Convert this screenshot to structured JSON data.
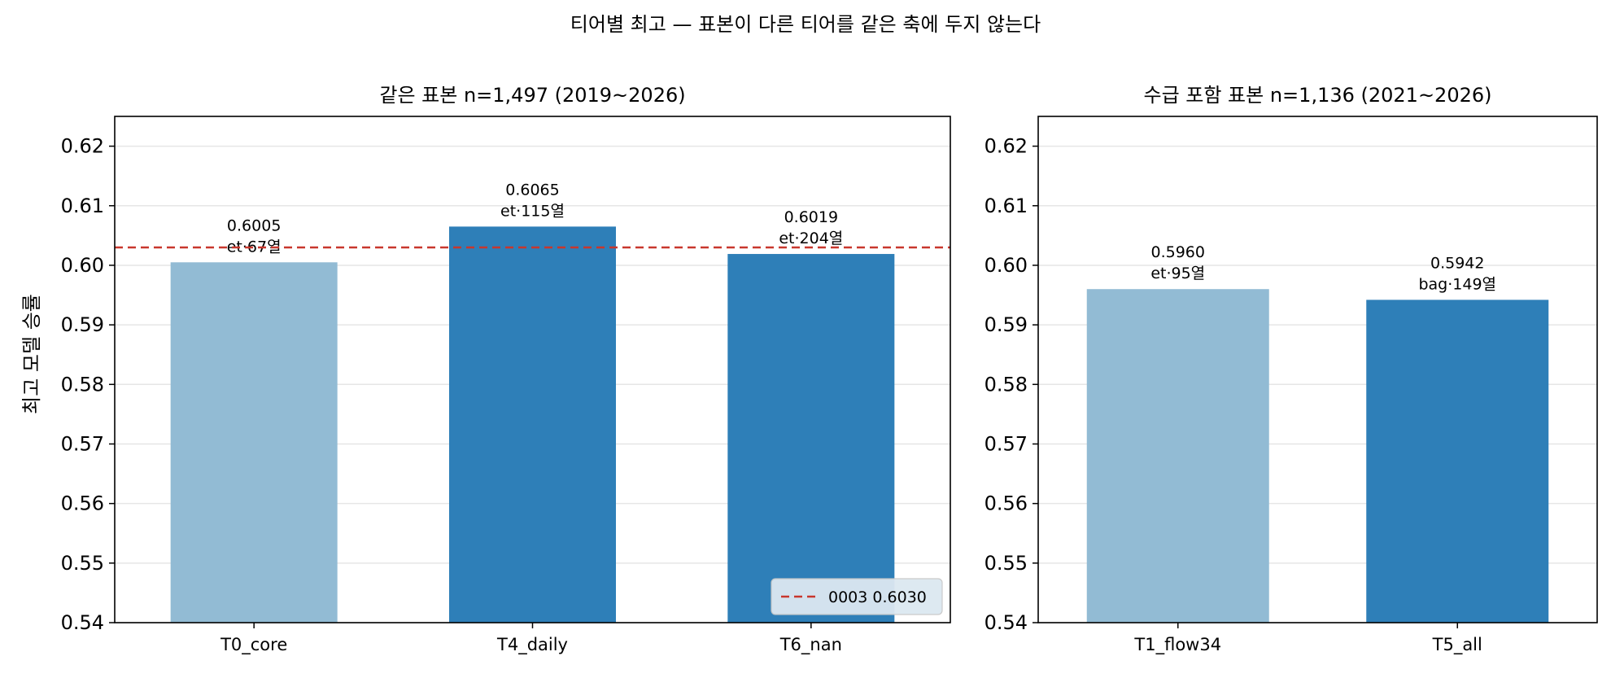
{
  "figure": {
    "title": "티어별 최고 — 표본이 다른 티어를 같은 축에 두지 않는다",
    "ylabel": "최고 모델 승률"
  },
  "colors": {
    "light_bar": "#92bbd4",
    "dark_bar": "#2e7fb8",
    "reference_line": "#c8372d",
    "grid": "#e6e6e6",
    "legend_bg": "#dce8f1"
  },
  "chart_data": [
    {
      "type": "bar",
      "title": "같은 표본 n=1,497 (2019~2026)",
      "categories": [
        "T0_core",
        "T4_daily",
        "T6_nan"
      ],
      "values": [
        0.6005,
        0.6065,
        0.6019
      ],
      "bar_labels": [
        "0.6005",
        "0.6065",
        "0.6019"
      ],
      "bar_sublabels": [
        "et·67열",
        "et·115열",
        "et·204열"
      ],
      "bar_shades": [
        "light",
        "dark",
        "dark"
      ],
      "ylim": [
        0.54,
        0.625
      ],
      "yticks": [
        0.54,
        0.55,
        0.56,
        0.57,
        0.58,
        0.59,
        0.6,
        0.61,
        0.62
      ],
      "ytick_labels": [
        "0.54",
        "0.55",
        "0.56",
        "0.57",
        "0.58",
        "0.59",
        "0.60",
        "0.61",
        "0.62"
      ],
      "grid": "horizontal",
      "reference_line": {
        "value": 0.603,
        "label": "0003 0.6030",
        "style": "dashed"
      },
      "legend": "bottom-right"
    },
    {
      "type": "bar",
      "title": "수급 포함 표본 n=1,136 (2021~2026)",
      "categories": [
        "T1_flow34",
        "T5_all"
      ],
      "values": [
        0.596,
        0.5942
      ],
      "bar_labels": [
        "0.5960",
        "0.5942"
      ],
      "bar_sublabels": [
        "et·95열",
        "bag·149열"
      ],
      "bar_shades": [
        "light",
        "dark"
      ],
      "ylim": [
        0.54,
        0.625
      ],
      "yticks": [
        0.54,
        0.55,
        0.56,
        0.57,
        0.58,
        0.59,
        0.6,
        0.61,
        0.62
      ],
      "ytick_labels": [
        "0.54",
        "0.55",
        "0.56",
        "0.57",
        "0.58",
        "0.59",
        "0.60",
        "0.61",
        "0.62"
      ],
      "grid": "horizontal"
    }
  ]
}
